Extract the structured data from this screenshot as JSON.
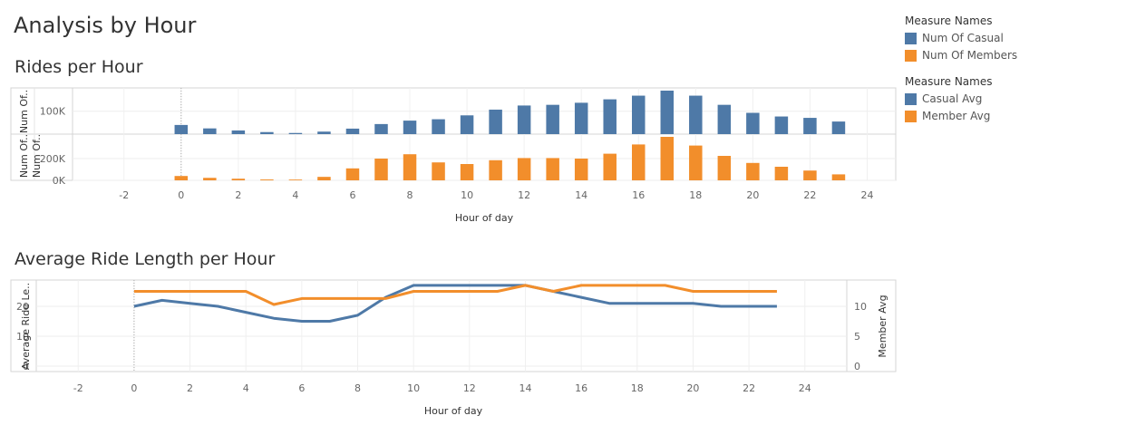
{
  "page_title": "Analysis by Hour",
  "legends": [
    {
      "title": "Measure Names",
      "items": [
        {
          "label": "Num Of Casual",
          "color": "#4e79a7"
        },
        {
          "label": "Num Of Members",
          "color": "#f28e2b"
        }
      ]
    },
    {
      "title": "Measure Names",
      "items": [
        {
          "label": "Casual Avg",
          "color": "#4e79a7"
        },
        {
          "label": "Member Avg",
          "color": "#f28e2b"
        }
      ]
    }
  ],
  "chart_data": [
    {
      "type": "bar",
      "title": "Rides per Hour",
      "xlabel": "Hour of day",
      "x_ticks": [
        -2,
        0,
        2,
        4,
        6,
        8,
        10,
        12,
        14,
        16,
        18,
        20,
        22,
        24
      ],
      "xlim": [
        -3.8,
        25
      ],
      "x": [
        0,
        1,
        2,
        3,
        4,
        5,
        6,
        7,
        8,
        9,
        10,
        11,
        12,
        13,
        14,
        15,
        16,
        17,
        18,
        19,
        20,
        21,
        22,
        23
      ],
      "panels": [
        {
          "series_name": "Num Of Casual",
          "ylabel": "Num Of..",
          "ylabel2": "Num Of..",
          "ylim": [
            0,
            190000
          ],
          "y_ticks": [
            100000
          ],
          "y_tick_labels": [
            "100K"
          ],
          "color": "#4e79a7",
          "values": [
            40000,
            25000,
            16000,
            9000,
            5000,
            11000,
            24000,
            44000,
            59000,
            65000,
            82000,
            107000,
            125000,
            128000,
            137000,
            152000,
            168000,
            190000,
            168000,
            128000,
            93000,
            77000,
            71000,
            55000
          ]
        },
        {
          "series_name": "Num Of Members",
          "ylabel": "Num Of..",
          "ylim": [
            0,
            400000
          ],
          "y_ticks": [
            0,
            200000
          ],
          "y_tick_labels": [
            "0K",
            "200K"
          ],
          "color": "#f28e2b",
          "values": [
            40000,
            23000,
            15000,
            8000,
            7000,
            32000,
            110000,
            200000,
            240000,
            165000,
            150000,
            185000,
            205000,
            205000,
            200000,
            245000,
            330000,
            400000,
            320000,
            225000,
            160000,
            125000,
            90000,
            55000
          ]
        }
      ]
    },
    {
      "type": "line",
      "title": "Average Ride Length per Hour",
      "xlabel": "Hour of day",
      "ylabel": "Average Ride Le..",
      "ylabel_right": "Member Avg",
      "x_ticks": [
        -2,
        0,
        2,
        4,
        6,
        8,
        10,
        12,
        14,
        16,
        18,
        20,
        22,
        24
      ],
      "xlim": [
        -3.5,
        25.5
      ],
      "ylim": [
        0,
        30
      ],
      "y_ticks": [
        0,
        10,
        20
      ],
      "ylim_right": [
        0,
        15
      ],
      "y_ticks_right": [
        0,
        5,
        10
      ],
      "x": [
        0,
        1,
        2,
        3,
        4,
        5,
        6,
        7,
        8,
        9,
        10,
        11,
        12,
        13,
        14,
        15,
        16,
        17,
        18,
        19,
        20,
        21,
        22,
        23
      ],
      "series": [
        {
          "name": "Casual Avg",
          "axis": "left",
          "color": "#4e79a7",
          "values": [
            20,
            22,
            21,
            20,
            18,
            16,
            15,
            15,
            17,
            23,
            27,
            27,
            27,
            27,
            27,
            25,
            23,
            21,
            21,
            21,
            21,
            20,
            20,
            20
          ]
        },
        {
          "name": "Member Avg",
          "axis": "right",
          "color": "#f28e2b",
          "values": [
            12.5,
            12.5,
            12.5,
            12.5,
            12.5,
            10.3,
            11.3,
            11.3,
            11.3,
            11.3,
            12.5,
            12.5,
            12.5,
            12.5,
            13.5,
            12.5,
            13.5,
            13.5,
            13.5,
            13.5,
            12.5,
            12.5,
            12.5,
            12.5
          ]
        }
      ]
    }
  ]
}
